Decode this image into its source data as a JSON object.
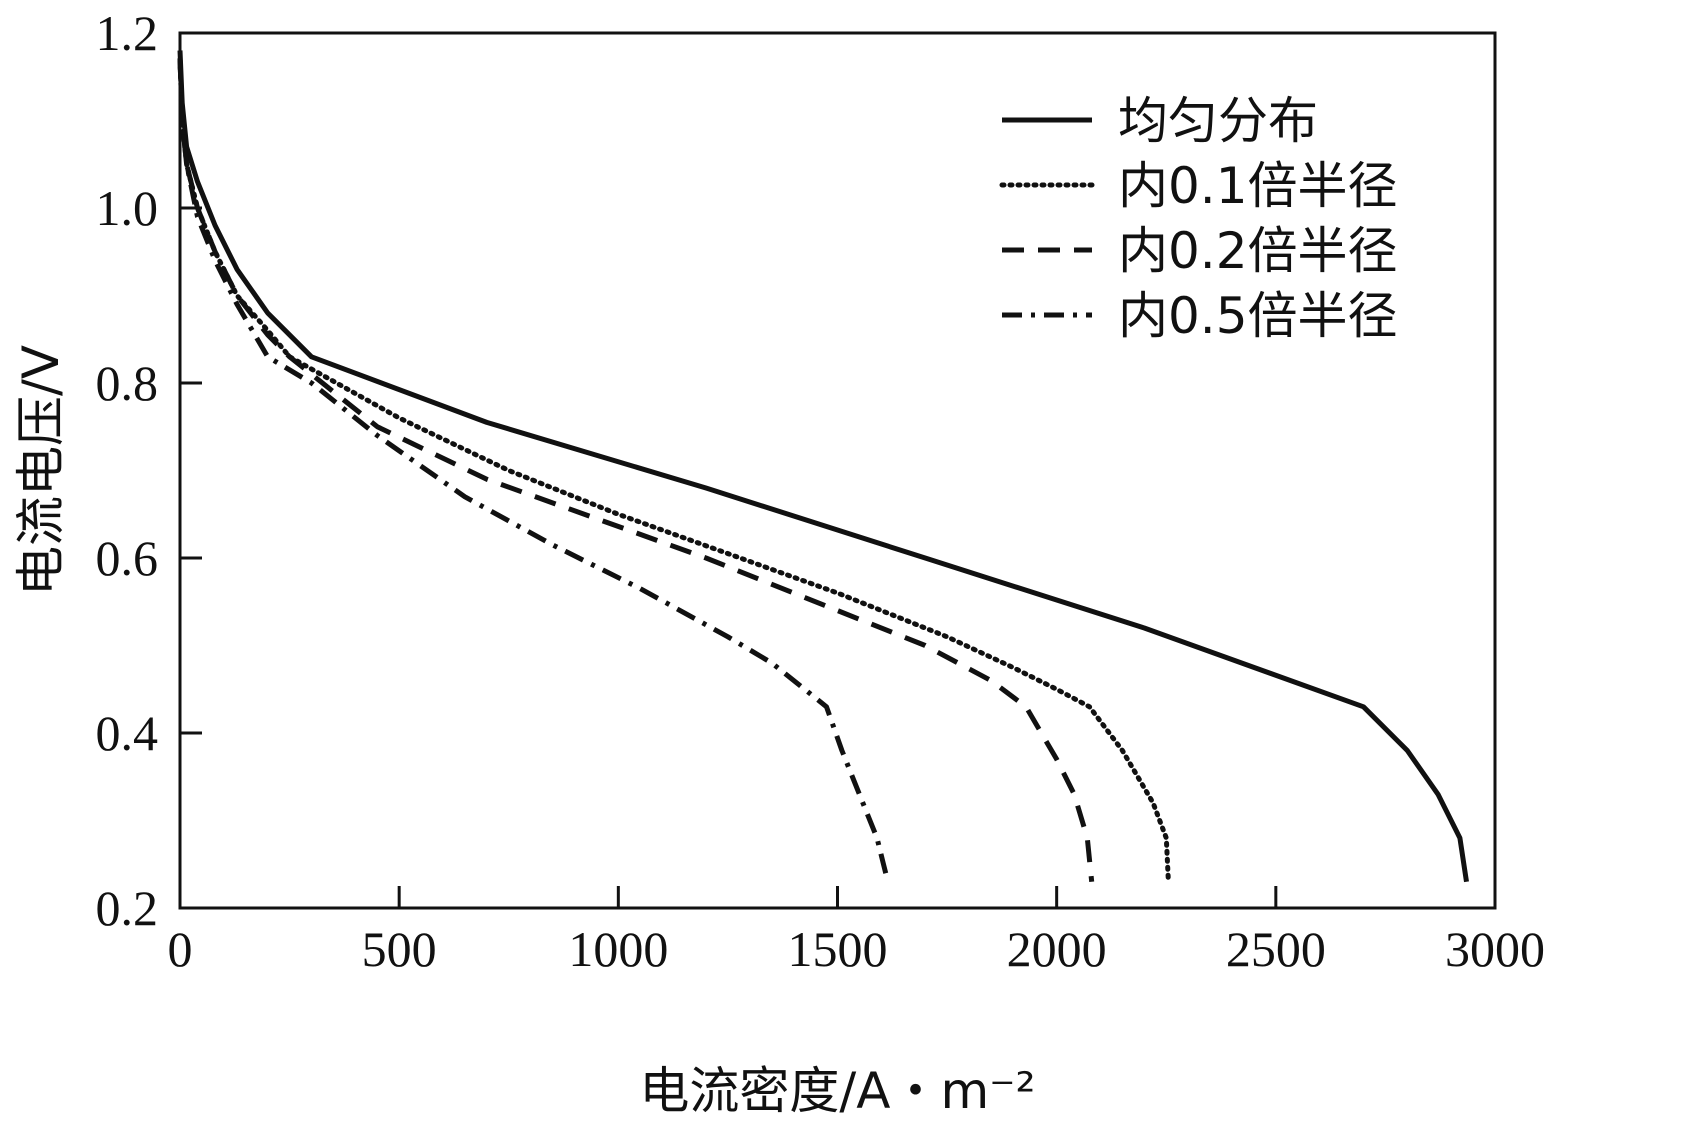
{
  "chart_data": {
    "type": "line",
    "xlabel": "电流密度/A・m⁻²",
    "ylabel": "电流电压/V",
    "xlim": [
      0,
      3000
    ],
    "ylim": [
      0.2,
      1.2
    ],
    "xticks": [
      0,
      500,
      1000,
      1500,
      2000,
      2500,
      3000
    ],
    "yticks": [
      0.2,
      0.4,
      0.6,
      0.8,
      1.0,
      1.2
    ],
    "xtick_labels": [
      "0",
      "500",
      "1000",
      "1500",
      "2000",
      "2500",
      "3000"
    ],
    "ytick_labels": [
      "0.2",
      "0.4",
      "0.6",
      "0.8",
      "1.0",
      "1.2"
    ],
    "grid": false,
    "legend_position": "top-right",
    "series": [
      {
        "name": "均匀分布",
        "style": "solid",
        "color": "#111111",
        "x": [
          0,
          5,
          15,
          40,
          80,
          130,
          200,
          300,
          700,
          1200,
          1700,
          2200,
          2700,
          2800,
          2870,
          2920,
          2935
        ],
        "y": [
          1.18,
          1.12,
          1.07,
          1.03,
          0.98,
          0.93,
          0.88,
          0.83,
          0.755,
          0.68,
          0.6,
          0.52,
          0.43,
          0.38,
          0.33,
          0.28,
          0.23
        ]
      },
      {
        "name": "内0.1倍半径",
        "style": "dotted",
        "color": "#111111",
        "x": [
          0,
          5,
          15,
          40,
          80,
          130,
          200,
          250,
          500,
          750,
          1000,
          1250,
          1500,
          1750,
          1900,
          2000,
          2075,
          2150,
          2220,
          2250,
          2255
        ],
        "y": [
          1.17,
          1.1,
          1.05,
          1.0,
          0.95,
          0.9,
          0.86,
          0.83,
          0.76,
          0.7,
          0.65,
          0.605,
          0.56,
          0.51,
          0.475,
          0.45,
          0.43,
          0.38,
          0.32,
          0.28,
          0.23
        ]
      },
      {
        "name": "内0.2倍半径",
        "style": "dashed",
        "color": "#111111",
        "x": [
          0,
          5,
          15,
          40,
          80,
          130,
          200,
          250,
          450,
          700,
          950,
          1200,
          1450,
          1700,
          1850,
          1930,
          2000,
          2040,
          2070,
          2080
        ],
        "y": [
          1.17,
          1.1,
          1.05,
          1.0,
          0.95,
          0.9,
          0.855,
          0.83,
          0.75,
          0.69,
          0.645,
          0.6,
          0.55,
          0.5,
          0.46,
          0.43,
          0.37,
          0.33,
          0.28,
          0.23
        ]
      },
      {
        "name": "内0.5倍半径",
        "style": "dashdot",
        "color": "#111111",
        "x": [
          0,
          5,
          15,
          40,
          80,
          130,
          200,
          300,
          450,
          650,
          850,
          1050,
          1250,
          1350,
          1475,
          1510,
          1550,
          1590,
          1605,
          1615
        ],
        "y": [
          1.17,
          1.1,
          1.05,
          0.99,
          0.94,
          0.89,
          0.83,
          0.8,
          0.74,
          0.67,
          0.615,
          0.565,
          0.51,
          0.48,
          0.43,
          0.38,
          0.33,
          0.28,
          0.25,
          0.23
        ]
      }
    ]
  }
}
